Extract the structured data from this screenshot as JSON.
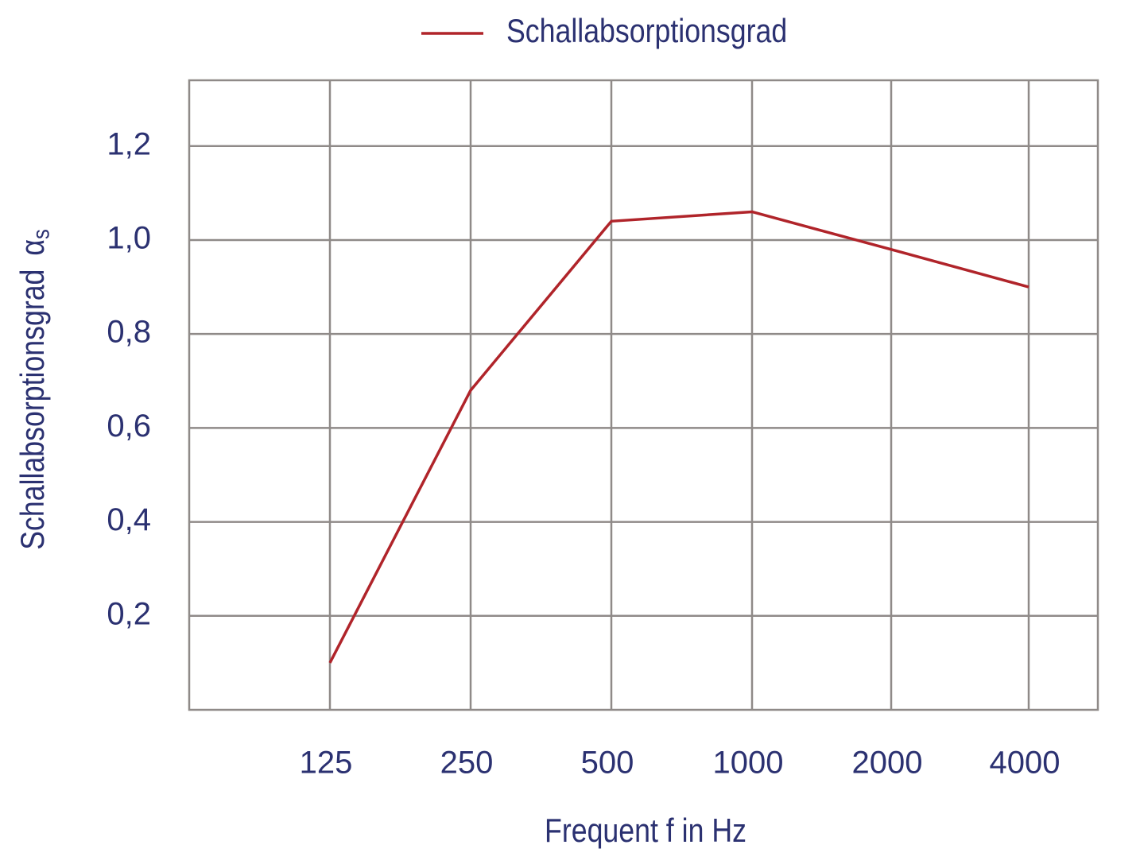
{
  "chart_data": {
    "type": "line",
    "legend_position": "top",
    "x_label": "Frequent f in Hz",
    "y_label": "Schallabsorptionsgrad",
    "y_symbol": "α",
    "y_symbol_sub": "s",
    "categories": [
      "125",
      "250",
      "500",
      "1000",
      "2000",
      "4000"
    ],
    "series": [
      {
        "name": "Schallabsorptionsgrad",
        "color": "#b0242a",
        "values": [
          0.1,
          0.68,
          1.04,
          1.06,
          0.98,
          0.9
        ]
      }
    ],
    "ylim": [
      0,
      1.34
    ],
    "yticks": [
      {
        "value": 0.2,
        "label": "0,2"
      },
      {
        "value": 0.4,
        "label": "0,4"
      },
      {
        "value": 0.6,
        "label": "0,6"
      },
      {
        "value": 0.8,
        "label": "0,8"
      },
      {
        "value": 1.0,
        "label": "1,0"
      },
      {
        "value": 1.2,
        "label": "1,2"
      }
    ],
    "grid": true
  }
}
